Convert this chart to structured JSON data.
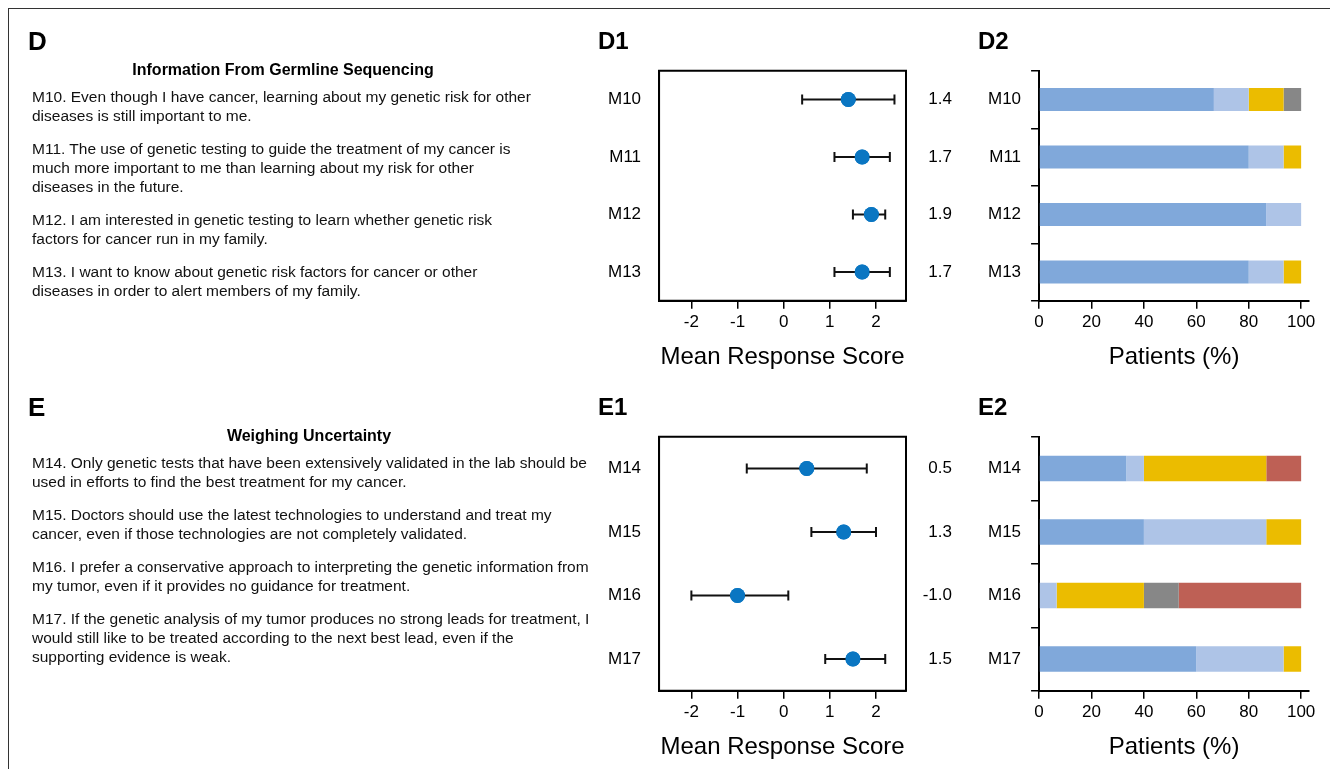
{
  "chart_data": [
    {
      "type": "other",
      "title": "D",
      "subtitle": "Information From Germline Sequencing",
      "annotations": [
        "M10. Even though I have cancer, learning about my genetic risk for other diseases is still important to me.",
        "M11. The use of genetic testing to guide the treatment of my cancer is much more important to me than learning about my risk for other diseases in the future.",
        "M12. I am interested in genetic testing to learn whether genetic risk factors for cancer run in my family.",
        "M13. I want to know about genetic risk factors for cancer or other diseases in order to alert members of my family."
      ]
    },
    {
      "type": "scatter",
      "orientation": "horizontal",
      "title": "D1",
      "xlabel": "Mean Response Score",
      "categories": [
        "M10",
        "M11",
        "M12",
        "M13"
      ],
      "values": [
        1.4,
        1.7,
        1.9,
        1.7
      ],
      "value_labels": [
        "1.4",
        "1.7",
        "1.9",
        "1.7"
      ],
      "errors": [
        [
          0.4,
          2.4
        ],
        [
          1.1,
          2.3
        ],
        [
          1.5,
          2.2
        ],
        [
          1.1,
          2.3
        ]
      ],
      "color": "#0a76c2",
      "marker": "circle",
      "xlim": [
        -2.7,
        2.65
      ],
      "xticks": [
        -2,
        -1,
        0,
        1,
        2
      ]
    },
    {
      "type": "bar",
      "orientation": "horizontal",
      "stacked": true,
      "title": "D2",
      "xlabel": "Patients (%)",
      "categories": [
        "M10",
        "M11",
        "M12",
        "M13"
      ],
      "xlim": [
        0,
        103
      ],
      "xticks": [
        0,
        20,
        40,
        60,
        80,
        100
      ],
      "series": [
        {
          "color": "#80a8da",
          "values": [
            66.7,
            80,
            86.7,
            80
          ]
        },
        {
          "color": "#aec4e7",
          "values": [
            13.3,
            13.3,
            13.3,
            13.3
          ]
        },
        {
          "color": "#ebbc00",
          "values": [
            13.3,
            6.7,
            null,
            6.7
          ]
        },
        {
          "color": "#878787",
          "values": [
            6.7,
            null,
            null,
            null
          ]
        }
      ]
    },
    {
      "type": "other",
      "title": "E",
      "subtitle": "Weighing Uncertainty",
      "annotations": [
        "M14. Only genetic tests that have been extensively validated in the lab should be used in efforts to find the best treatment for my cancer.",
        "M15. Doctors should use the latest technologies to understand and treat my cancer, even if those technologies are not completely validated.",
        "M16. I prefer a conservative approach to interpreting the genetic information from my tumor, even if it provides no guidance for treatment.",
        "M17. If the genetic analysis of my tumor produces no strong leads for treatment, I would still like to be treated according to the next best lead, even if the supporting evidence is weak."
      ]
    },
    {
      "type": "scatter",
      "orientation": "horizontal",
      "title": "E1",
      "xlabel": "Mean Response Score",
      "categories": [
        "M14",
        "M15",
        "M16",
        "M17"
      ],
      "values": [
        0.5,
        1.3,
        -1.0,
        1.5
      ],
      "value_labels": [
        "0.5",
        "1.3",
        "-1.0",
        "1.5"
      ],
      "errors": [
        [
          -0.8,
          1.8
        ],
        [
          0.6,
          2.0
        ],
        [
          -2.0,
          0.1
        ],
        [
          0.9,
          2.2
        ]
      ],
      "color": "#0a76c2",
      "marker": "circle",
      "xlim": [
        -2.7,
        2.65
      ],
      "xticks": [
        -2,
        -1,
        0,
        1,
        2
      ]
    },
    {
      "type": "bar",
      "orientation": "horizontal",
      "stacked": true,
      "title": "E2",
      "xlabel": "Patients (%)",
      "categories": [
        "M14",
        "M15",
        "M16",
        "M17"
      ],
      "xlim": [
        0,
        103
      ],
      "xticks": [
        0,
        20,
        40,
        60,
        80,
        100
      ],
      "series": [
        {
          "color": "#80a8da",
          "values": [
            33.3,
            40,
            null,
            60
          ]
        },
        {
          "color": "#aec4e7",
          "values": [
            6.7,
            46.7,
            6.7,
            33.3
          ]
        },
        {
          "color": "#ebbc00",
          "values": [
            46.7,
            13.3,
            33.3,
            6.7
          ]
        },
        {
          "color": "#878787",
          "values": [
            null,
            null,
            13.3,
            null
          ]
        },
        {
          "color": "#be6055",
          "values": [
            13.3,
            null,
            46.7,
            null
          ]
        }
      ]
    }
  ]
}
